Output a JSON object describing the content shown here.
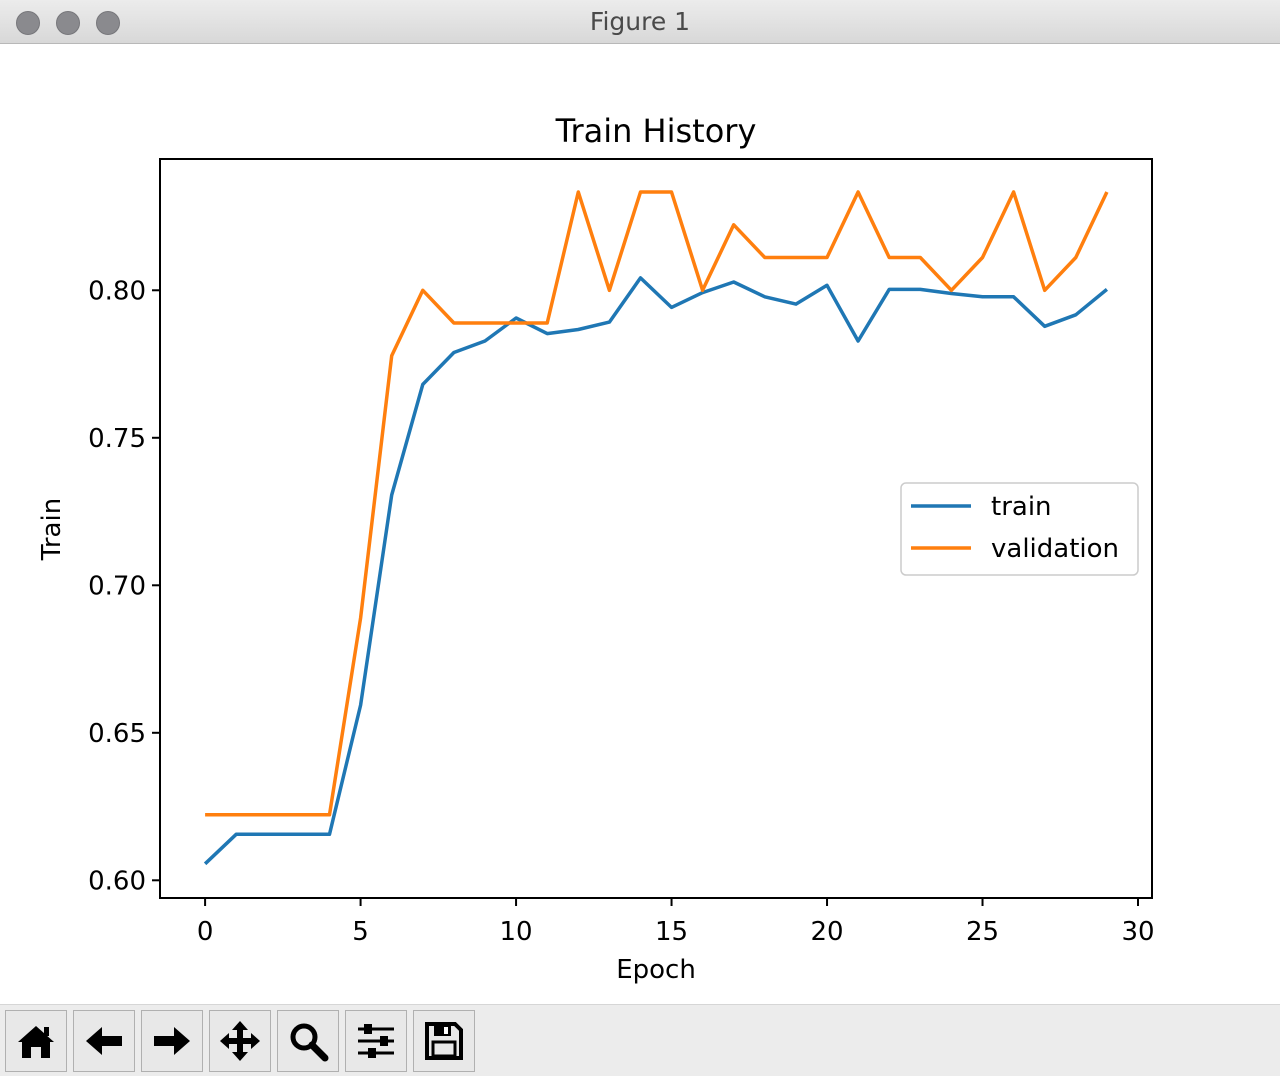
{
  "window": {
    "title": "Figure 1"
  },
  "toolbar": {
    "buttons": [
      {
        "name": "home-button",
        "icon": "home-icon"
      },
      {
        "name": "back-button",
        "icon": "arrow-left-icon"
      },
      {
        "name": "forward-button",
        "icon": "arrow-right-icon"
      },
      {
        "name": "pan-button",
        "icon": "move-icon"
      },
      {
        "name": "zoom-button",
        "icon": "magnifier-icon"
      },
      {
        "name": "configure-subplots-button",
        "icon": "sliders-icon"
      },
      {
        "name": "save-button",
        "icon": "floppy-disk-icon"
      }
    ]
  },
  "chart_data": {
    "type": "line",
    "title": "Train History",
    "xlabel": "Epoch",
    "ylabel": "Train",
    "xlim": [
      -1.45,
      30.45
    ],
    "ylim": [
      0.594,
      0.8445
    ],
    "xticks": [
      0,
      5,
      10,
      15,
      20,
      25,
      30
    ],
    "xtick_labels": [
      "0",
      "5",
      "10",
      "15",
      "20",
      "25",
      "30"
    ],
    "yticks": [
      0.6,
      0.65,
      0.7,
      0.75,
      0.8
    ],
    "ytick_labels": [
      "0.60",
      "0.65",
      "0.70",
      "0.75",
      "0.80"
    ],
    "legend_position": "center-right",
    "grid": false,
    "x": [
      0,
      1,
      2,
      3,
      4,
      5,
      6,
      7,
      8,
      9,
      10,
      11,
      12,
      13,
      14,
      15,
      16,
      17,
      18,
      19,
      20,
      21,
      22,
      23,
      24,
      25,
      26,
      27,
      28,
      29
    ],
    "series": [
      {
        "name": "train",
        "color": "#1f77b4",
        "values": [
          0.6056,
          0.6156,
          0.6156,
          0.6156,
          0.6156,
          0.6594,
          0.7306,
          0.7681,
          0.7789,
          0.7828,
          0.7906,
          0.7853,
          0.7867,
          0.7892,
          0.8042,
          0.7942,
          0.7992,
          0.8028,
          0.7978,
          0.7953,
          0.8017,
          0.7828,
          0.8003,
          0.8003,
          0.7989,
          0.7978,
          0.7978,
          0.7878,
          0.7917,
          0.8003
        ]
      },
      {
        "name": "validation",
        "color": "#ff7f0e",
        "values": [
          0.6222,
          0.6222,
          0.6222,
          0.6222,
          0.6222,
          0.6889,
          0.7778,
          0.8,
          0.7889,
          0.7889,
          0.7889,
          0.7889,
          0.8333,
          0.8,
          0.8333,
          0.8333,
          0.8,
          0.8222,
          0.8111,
          0.8111,
          0.8111,
          0.8333,
          0.8111,
          0.8111,
          0.8,
          0.8111,
          0.8333,
          0.8,
          0.8111,
          0.8333
        ]
      }
    ]
  }
}
